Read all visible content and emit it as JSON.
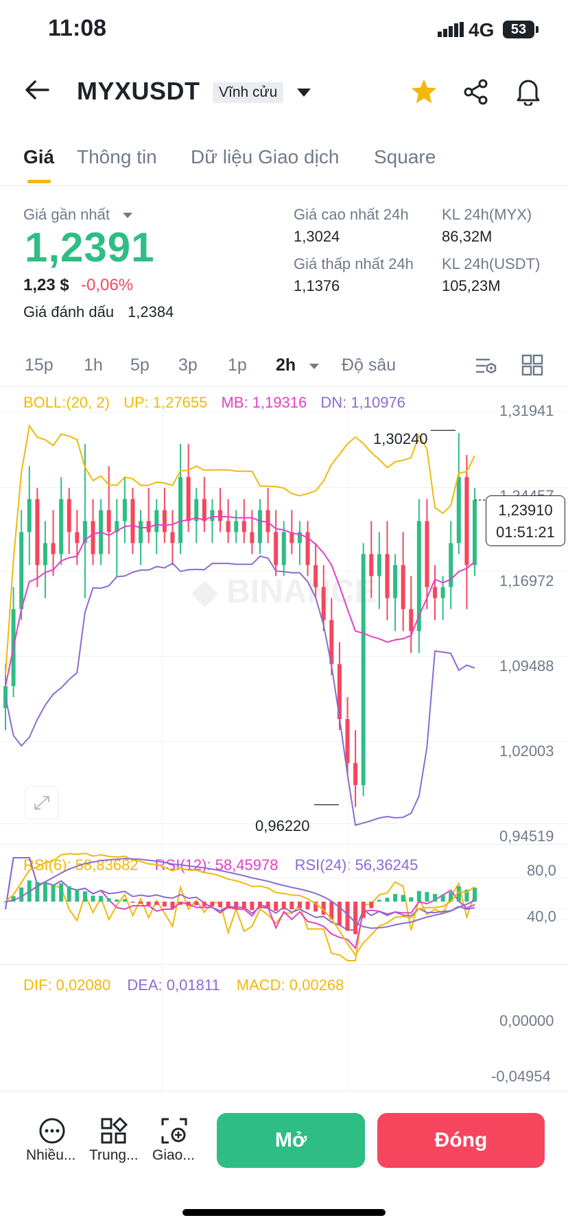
{
  "status_bar": {
    "time": "11:08",
    "network": "4G",
    "battery": "53"
  },
  "header": {
    "symbol": "MYXUSDT",
    "contract_type": "Vĩnh cửu"
  },
  "tabs": [
    {
      "label": "Giá",
      "active": true
    },
    {
      "label": "Thông tin",
      "active": false
    },
    {
      "label": "Dữ liệu Giao dịch",
      "active": false
    },
    {
      "label": "Square",
      "active": false
    }
  ],
  "price_panel": {
    "last_price_label": "Giá gần nhất",
    "last_price": "1,2391",
    "usd_price": "1,23 $",
    "change_pct": "-0,06%",
    "mark_price_label": "Giá đánh dấu",
    "mark_price": "1,2384",
    "stats": {
      "high_label": "Giá cao nhất 24h",
      "high": "1,3024",
      "low_label": "Giá thấp nhất 24h",
      "low": "1,1376",
      "vol_base_label": "KL 24h(MYX)",
      "vol_base": "86,32M",
      "vol_quote_label": "KL 24h(USDT)",
      "vol_quote": "105,23M"
    }
  },
  "timeframes": [
    {
      "label": "15p",
      "active": false
    },
    {
      "label": "1h",
      "active": false
    },
    {
      "label": "5p",
      "active": false
    },
    {
      "label": "3p",
      "active": false
    },
    {
      "label": "1p",
      "active": false
    },
    {
      "label": "2h",
      "active": true
    },
    {
      "label": "Độ sâu",
      "active": false
    }
  ],
  "indicators": {
    "boll": "BOLL:(20, 2)",
    "up": "UP: 1,27655",
    "mb": "MB: 1,19316",
    "dn": "DN: 1,10976",
    "rsi6": "RSI(6): 58,83682",
    "rsi12": "RSI(12): 58,45978",
    "rsi24": "RSI(24): 56,36245",
    "dif": "DIF: 0,02080",
    "dea": "DEA: 0,01811",
    "macd": "MACD: 0,00268"
  },
  "main_axis": [
    "1,31941",
    "1,24457",
    "1,16972",
    "1,09488",
    "1,02003",
    "0,94519"
  ],
  "rsi_axis": [
    "80,0",
    "40,0"
  ],
  "macd_axis": [
    "0,00000",
    "-0,04954"
  ],
  "annotations": {
    "high": "1,30240",
    "low": "0,96220",
    "current_price": "1,23910",
    "countdown": "01:51:21"
  },
  "watermark": "BINANCE",
  "bottom_nav": [
    {
      "label": "Nhiều...",
      "icon": "more-icon"
    },
    {
      "label": "Trung...",
      "icon": "grid-icon"
    },
    {
      "label": "Giao...",
      "icon": "trade-icon"
    }
  ],
  "actions": {
    "open": "Mở",
    "close": "Đóng"
  },
  "colors": {
    "up": "#2ebd85",
    "down": "#f6465d",
    "accent": "#f0b90b",
    "boll_up": "#f0b90b",
    "boll_mb": "#e040c8",
    "boll_dn": "#8a6bd1"
  },
  "chart_data": [
    {
      "type": "candlestick",
      "title": "",
      "indicator": "BOLL:(20, 2)",
      "y_ticks": [
        1.31941,
        1.24457,
        1.16972,
        1.09488,
        1.02003,
        0.94519
      ],
      "ylim": [
        0.94519,
        1.31941
      ],
      "ohlc_approx": [
        [
          1.05,
          1.09,
          1.03,
          1.07
        ],
        [
          1.07,
          1.16,
          1.06,
          1.14
        ],
        [
          1.14,
          1.23,
          1.13,
          1.21
        ],
        [
          1.21,
          1.27,
          1.18,
          1.24
        ],
        [
          1.24,
          1.25,
          1.16,
          1.18
        ],
        [
          1.18,
          1.22,
          1.15,
          1.2
        ],
        [
          1.2,
          1.23,
          1.17,
          1.19
        ],
        [
          1.19,
          1.26,
          1.18,
          1.24
        ],
        [
          1.24,
          1.25,
          1.19,
          1.21
        ],
        [
          1.21,
          1.23,
          1.18,
          1.2
        ],
        [
          1.2,
          1.29,
          1.15,
          1.22
        ],
        [
          1.22,
          1.24,
          1.18,
          1.19
        ],
        [
          1.19,
          1.24,
          1.18,
          1.23
        ],
        [
          1.23,
          1.27,
          1.19,
          1.21
        ],
        [
          1.21,
          1.24,
          1.17,
          1.22
        ],
        [
          1.22,
          1.26,
          1.2,
          1.24
        ],
        [
          1.24,
          1.25,
          1.19,
          1.2
        ],
        [
          1.2,
          1.23,
          1.18,
          1.22
        ],
        [
          1.22,
          1.25,
          1.2,
          1.21
        ],
        [
          1.21,
          1.24,
          1.19,
          1.23
        ],
        [
          1.23,
          1.25,
          1.2,
          1.21
        ],
        [
          1.21,
          1.23,
          1.18,
          1.2
        ],
        [
          1.2,
          1.29,
          1.19,
          1.26
        ],
        [
          1.26,
          1.29,
          1.21,
          1.22
        ],
        [
          1.22,
          1.25,
          1.2,
          1.24
        ],
        [
          1.24,
          1.26,
          1.21,
          1.22
        ],
        [
          1.22,
          1.24,
          1.2,
          1.23
        ],
        [
          1.23,
          1.25,
          1.21,
          1.22
        ],
        [
          1.22,
          1.24,
          1.2,
          1.21
        ],
        [
          1.21,
          1.23,
          1.2,
          1.22
        ],
        [
          1.22,
          1.24,
          1.2,
          1.21
        ],
        [
          1.21,
          1.23,
          1.19,
          1.2
        ],
        [
          1.2,
          1.24,
          1.19,
          1.23
        ],
        [
          1.23,
          1.25,
          1.2,
          1.21
        ],
        [
          1.21,
          1.23,
          1.17,
          1.18
        ],
        [
          1.18,
          1.22,
          1.17,
          1.21
        ],
        [
          1.21,
          1.23,
          1.19,
          1.2
        ],
        [
          1.2,
          1.22,
          1.18,
          1.21
        ],
        [
          1.21,
          1.22,
          1.17,
          1.18
        ],
        [
          1.18,
          1.2,
          1.15,
          1.16
        ],
        [
          1.16,
          1.18,
          1.12,
          1.13
        ],
        [
          1.13,
          1.15,
          1.08,
          1.09
        ],
        [
          1.09,
          1.11,
          1.03,
          1.04
        ],
        [
          1.04,
          1.06,
          0.99,
          1.0
        ],
        [
          1.0,
          1.03,
          0.96,
          0.98
        ],
        [
          0.98,
          1.2,
          0.97,
          1.19
        ],
        [
          1.19,
          1.22,
          1.15,
          1.17
        ],
        [
          1.17,
          1.21,
          1.14,
          1.19
        ],
        [
          1.19,
          1.22,
          1.13,
          1.15
        ],
        [
          1.15,
          1.19,
          1.12,
          1.18
        ],
        [
          1.18,
          1.21,
          1.12,
          1.14
        ],
        [
          1.14,
          1.17,
          1.1,
          1.12
        ],
        [
          1.12,
          1.24,
          1.1,
          1.22
        ],
        [
          1.22,
          1.24,
          1.14,
          1.16
        ],
        [
          1.16,
          1.18,
          1.13,
          1.15
        ],
        [
          1.15,
          1.17,
          1.13,
          1.16
        ],
        [
          1.16,
          1.22,
          1.14,
          1.2
        ],
        [
          1.2,
          1.3,
          1.19,
          1.26
        ],
        [
          1.26,
          1.28,
          1.14,
          1.18
        ],
        [
          1.18,
          1.25,
          1.17,
          1.239
        ]
      ]
    },
    {
      "type": "line",
      "title": "",
      "indicator": "RSI",
      "y_ticks": [
        80,
        40
      ],
      "series": [
        {
          "name": "RSI(6)",
          "last": 58.83682
        },
        {
          "name": "RSI(12)",
          "last": 58.45978
        },
        {
          "name": "RSI(24)",
          "last": 56.36245
        }
      ]
    },
    {
      "type": "bar",
      "title": "",
      "indicator": "MACD",
      "y_ticks": [
        0.0,
        -0.04954
      ],
      "series": [
        {
          "name": "DIF",
          "last": 0.0208
        },
        {
          "name": "DEA",
          "last": 0.01811
        },
        {
          "name": "MACD",
          "last": 0.00268
        }
      ]
    }
  ]
}
